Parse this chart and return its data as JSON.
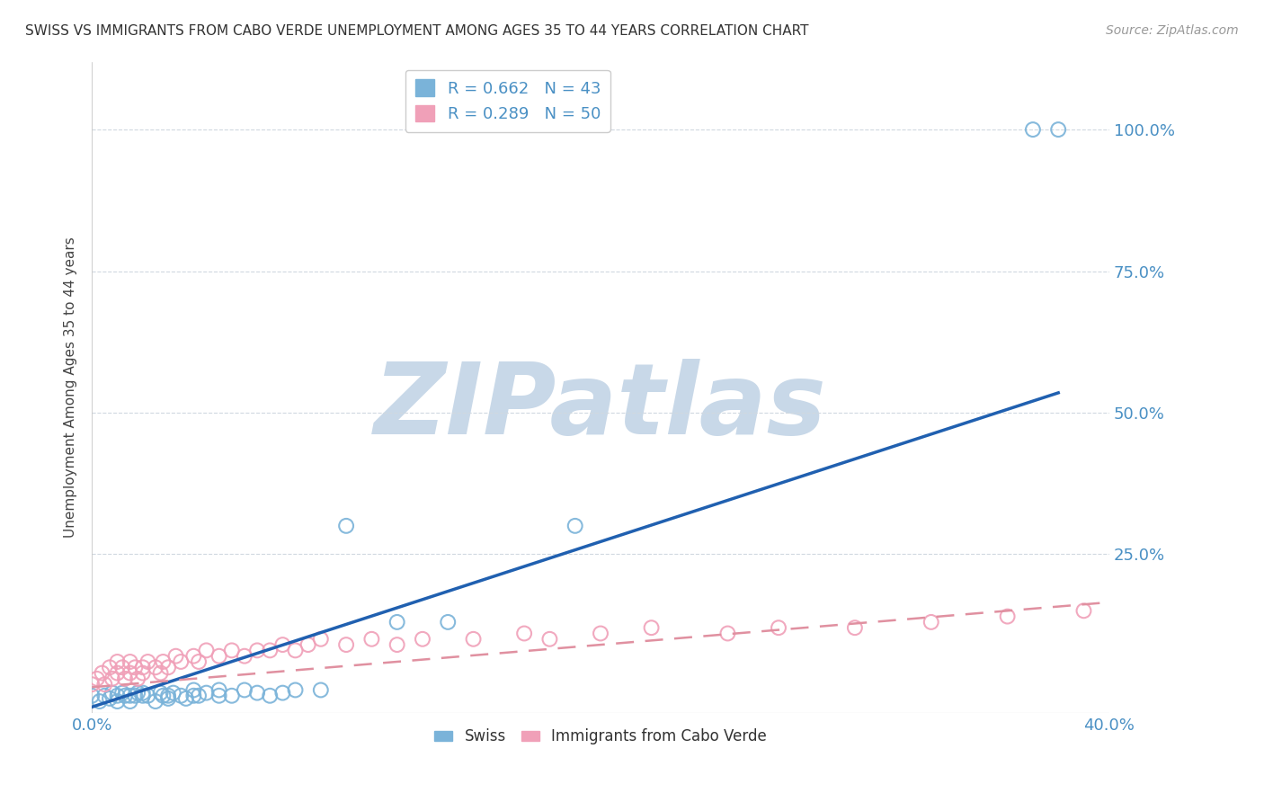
{
  "title": "SWISS VS IMMIGRANTS FROM CABO VERDE UNEMPLOYMENT AMONG AGES 35 TO 44 YEARS CORRELATION CHART",
  "source": "Source: ZipAtlas.com",
  "ylabel_label": "Unemployment Among Ages 35 to 44 years",
  "watermark": "ZIPatlas",
  "watermark_color_hex": "#c8d8e8",
  "swiss_scatter_color": "#7ab3d9",
  "cabo_scatter_color": "#f0a0b8",
  "swiss_line_color": "#2060b0",
  "cabo_line_color": "#d06070",
  "cabo_dash_color": "#e090a0",
  "xmin": 0.0,
  "xmax": 0.4,
  "ymin": -0.03,
  "ymax": 1.12,
  "ytick_positions": [
    0.25,
    0.5,
    0.75,
    1.0
  ],
  "ytick_labels": [
    "25.0%",
    "50.0%",
    "75.0%",
    "100.0%"
  ],
  "xtick_positions": [
    0.0,
    0.4
  ],
  "xtick_labels": [
    "0.0%",
    "40.0%"
  ],
  "tick_color": "#4a90c4",
  "grid_color": "#d0d8e0",
  "background_color": "#ffffff",
  "legend_box_color": "#ffffff",
  "legend_edge_color": "#cccccc",
  "swiss_r": "0.662",
  "swiss_n": "43",
  "cabo_r": "0.289",
  "cabo_n": "50",
  "swiss_line_x0": 0.0,
  "swiss_line_y0": -0.02,
  "swiss_line_x1": 0.38,
  "swiss_line_y1": 0.535,
  "cabo_line_x0": 0.0,
  "cabo_line_y0": 0.015,
  "cabo_line_x1": 0.4,
  "cabo_line_y1": 0.165,
  "swiss_points_x": [
    0.0,
    0.003,
    0.005,
    0.007,
    0.008,
    0.01,
    0.01,
    0.012,
    0.013,
    0.015,
    0.015,
    0.017,
    0.018,
    0.02,
    0.02,
    0.022,
    0.025,
    0.027,
    0.028,
    0.03,
    0.03,
    0.032,
    0.035,
    0.037,
    0.04,
    0.04,
    0.042,
    0.045,
    0.05,
    0.05,
    0.055,
    0.06,
    0.065,
    0.07,
    0.075,
    0.08,
    0.09,
    0.1,
    0.12,
    0.14,
    0.19,
    0.37,
    0.38
  ],
  "swiss_points_y": [
    0.0,
    -0.01,
    0.0,
    -0.005,
    0.005,
    0.0,
    -0.01,
    0.005,
    0.0,
    0.0,
    -0.01,
    0.0,
    0.005,
    0.0,
    0.005,
    0.0,
    -0.01,
    0.005,
    0.0,
    -0.005,
    0.0,
    0.005,
    0.0,
    -0.005,
    0.0,
    0.01,
    0.0,
    0.005,
    0.0,
    0.01,
    0.0,
    0.01,
    0.005,
    0.0,
    0.005,
    0.01,
    0.01,
    0.3,
    0.13,
    0.13,
    0.3,
    1.0,
    1.0
  ],
  "cabo_points_x": [
    0.0,
    0.002,
    0.004,
    0.005,
    0.007,
    0.008,
    0.01,
    0.01,
    0.012,
    0.013,
    0.015,
    0.015,
    0.017,
    0.018,
    0.02,
    0.02,
    0.022,
    0.025,
    0.027,
    0.028,
    0.03,
    0.033,
    0.035,
    0.04,
    0.042,
    0.045,
    0.05,
    0.055,
    0.06,
    0.065,
    0.07,
    0.075,
    0.08,
    0.085,
    0.09,
    0.1,
    0.11,
    0.12,
    0.13,
    0.15,
    0.17,
    0.18,
    0.2,
    0.22,
    0.25,
    0.27,
    0.3,
    0.33,
    0.36,
    0.39
  ],
  "cabo_points_y": [
    0.02,
    0.03,
    0.04,
    0.02,
    0.05,
    0.03,
    0.04,
    0.06,
    0.05,
    0.03,
    0.06,
    0.04,
    0.05,
    0.03,
    0.05,
    0.04,
    0.06,
    0.05,
    0.04,
    0.06,
    0.05,
    0.07,
    0.06,
    0.07,
    0.06,
    0.08,
    0.07,
    0.08,
    0.07,
    0.08,
    0.08,
    0.09,
    0.08,
    0.09,
    0.1,
    0.09,
    0.1,
    0.09,
    0.1,
    0.1,
    0.11,
    0.1,
    0.11,
    0.12,
    0.11,
    0.12,
    0.12,
    0.13,
    0.14,
    0.15
  ],
  "title_fontsize": 11,
  "source_fontsize": 10,
  "tick_fontsize": 13,
  "ylabel_fontsize": 11,
  "legend_fontsize": 13,
  "watermark_fontsize": 80
}
